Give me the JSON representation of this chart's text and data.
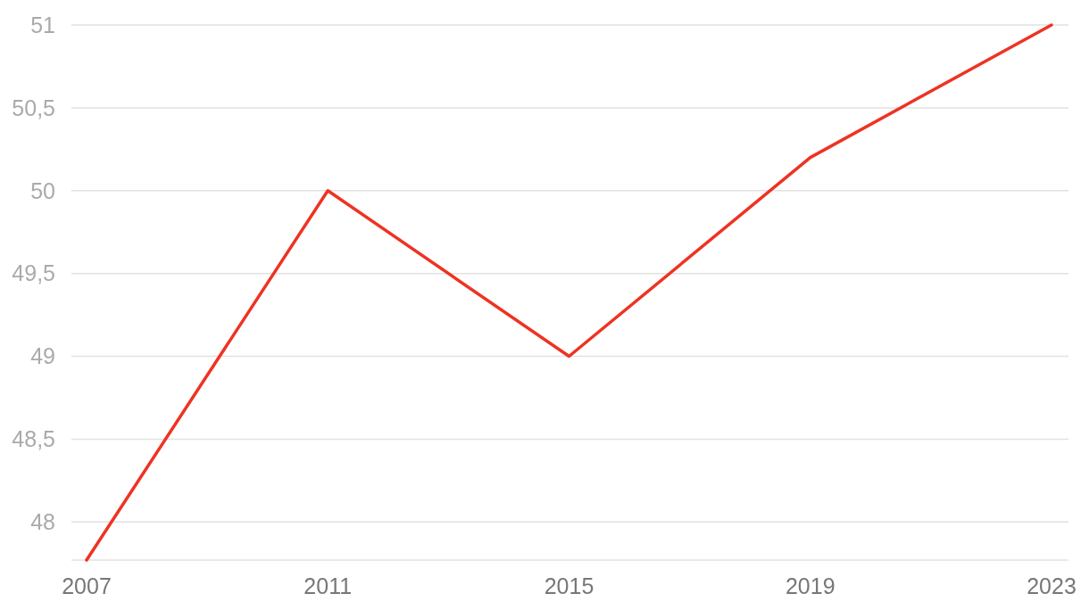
{
  "chart_data": {
    "type": "line",
    "categories": [
      "2007",
      "2011",
      "2015",
      "2019",
      "2023"
    ],
    "series": [
      {
        "color": "#ee3322",
        "values": [
          47.77,
          50,
          49,
          50.2,
          51
        ]
      }
    ],
    "yticks": [
      48,
      {
        "value": 48.5,
        "label": "48,5"
      },
      49,
      {
        "value": 49.5,
        "label": "49,5"
      },
      50,
      {
        "value": 50.5,
        "label": "50,5"
      },
      51
    ],
    "ylim": [
      47.77,
      51
    ],
    "grid": "y",
    "marker": "none",
    "line_style": "solid"
  }
}
